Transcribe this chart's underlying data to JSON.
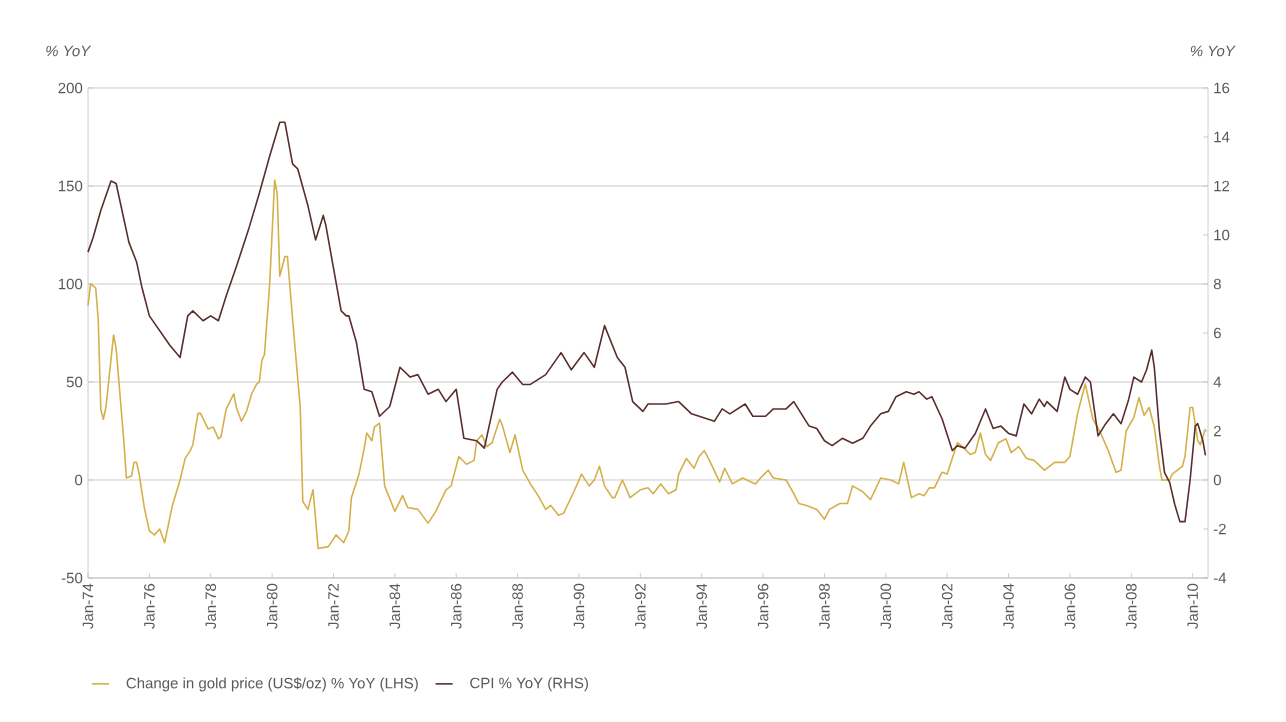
{
  "chart_data": {
    "type": "line",
    "ylabel": "% YoY",
    "y2label": "% YoY",
    "xlim": [
      "1974-01",
      "2010-07"
    ],
    "xticks": [
      {
        "value": "1974-01",
        "label": "Jan-74"
      },
      {
        "value": "1976-01",
        "label": "Jan-76"
      },
      {
        "value": "1978-01",
        "label": "Jan-78"
      },
      {
        "value": "1980-01",
        "label": "Jan-80"
      },
      {
        "value": "1982-01",
        "label": "Jan-72"
      },
      {
        "value": "1984-01",
        "label": "Jan-84"
      },
      {
        "value": "1986-01",
        "label": "Jan-86"
      },
      {
        "value": "1988-01",
        "label": "Jan-88"
      },
      {
        "value": "1990-01",
        "label": "Jan-90"
      },
      {
        "value": "1992-01",
        "label": "Jan-92"
      },
      {
        "value": "1994-01",
        "label": "Jan-94"
      },
      {
        "value": "1996-01",
        "label": "Jan-96"
      },
      {
        "value": "1998-01",
        "label": "Jan-98"
      },
      {
        "value": "2000-01",
        "label": "Jan-00"
      },
      {
        "value": "2002-01",
        "label": "Jan-02"
      },
      {
        "value": "2004-01",
        "label": "Jan-04"
      },
      {
        "value": "2006-01",
        "label": "Jan-06"
      },
      {
        "value": "2008-01",
        "label": "Jan-08"
      },
      {
        "value": "2010-01",
        "label": "Jan-10"
      }
    ],
    "ylim": [
      -50,
      200
    ],
    "yticks": [
      -50,
      0,
      50,
      100,
      150,
      200
    ],
    "y2lim": [
      -4,
      16
    ],
    "y2ticks": [
      -4,
      -2,
      0,
      2,
      4,
      6,
      8,
      10,
      12,
      14,
      16
    ],
    "grid": "y",
    "legend": "bottom",
    "series": [
      {
        "name": "Change in gold price (US$/oz) % YoY (LHS)",
        "color": "#d4b04a",
        "x": [
          "1974-01",
          "1974-02",
          "1974-04",
          "1974-05",
          "1974-06",
          "1974-07",
          "1974-08",
          "1974-11",
          "1974-12",
          "1975-03",
          "1975-04",
          "1975-06",
          "1975-07",
          "1975-08",
          "1975-09",
          "1975-11",
          "1976-01",
          "1976-03",
          "1976-05",
          "1976-07",
          "1976-10",
          "1977-01",
          "1977-03",
          "1977-05",
          "1977-06",
          "1977-08",
          "1977-09",
          "1977-12",
          "1978-02",
          "1978-04",
          "1978-05",
          "1978-07",
          "1978-10",
          "1978-11",
          "1979-01",
          "1979-03",
          "1979-05",
          "1979-07",
          "1979-08",
          "1979-09",
          "1979-10",
          "1979-12",
          "1980-02",
          "1980-03",
          "1980-04",
          "1980-06",
          "1980-07",
          "1980-09",
          "1980-12",
          "1981-01",
          "1981-03",
          "1981-05",
          "1981-07",
          "1981-11",
          "1982-02",
          "1982-05",
          "1982-07",
          "1982-08",
          "1982-11",
          "1983-01",
          "1983-02",
          "1983-04",
          "1983-05",
          "1983-07",
          "1983-09",
          "1984-01",
          "1984-04",
          "1984-06",
          "1984-10",
          "1985-02",
          "1985-05",
          "1985-09",
          "1985-11",
          "1986-02",
          "1986-05",
          "1986-08",
          "1986-09",
          "1986-11",
          "1987-01",
          "1987-03",
          "1987-06",
          "1987-07",
          "1987-10",
          "1987-12",
          "1988-03",
          "1988-06",
          "1988-09",
          "1988-12",
          "1989-02",
          "1989-05",
          "1989-07",
          "1989-11",
          "1990-02",
          "1990-05",
          "1990-07",
          "1990-09",
          "1990-11",
          "1991-02",
          "1991-03",
          "1991-06",
          "1991-09",
          "1992-01",
          "1992-04",
          "1992-06",
          "1992-09",
          "1992-12",
          "1993-03",
          "1993-04",
          "1993-07",
          "1993-10",
          "1993-12",
          "1994-02",
          "1994-04",
          "1994-08",
          "1994-10",
          "1995-01",
          "1995-05",
          "1995-10",
          "1995-12",
          "1996-03",
          "1996-05",
          "1996-10",
          "1997-01",
          "1997-03",
          "1997-06",
          "1997-10",
          "1998-01",
          "1998-03",
          "1998-07",
          "1998-10",
          "1998-12",
          "1999-04",
          "1999-07",
          "1999-11",
          "2000-03",
          "2000-06",
          "2000-08",
          "2000-11",
          "2001-02",
          "2001-04",
          "2001-06",
          "2001-08",
          "2001-11",
          "2002-01",
          "2002-05",
          "2002-07",
          "2002-10",
          "2002-12",
          "2003-02",
          "2003-04",
          "2003-06",
          "2003-09",
          "2003-12",
          "2004-02",
          "2004-05",
          "2004-08",
          "2004-11",
          "2005-03",
          "2005-05",
          "2005-07",
          "2005-11",
          "2006-01",
          "2006-04",
          "2006-07",
          "2006-10",
          "2007-01",
          "2007-04",
          "2007-07",
          "2007-09",
          "2007-11",
          "2008-02",
          "2008-04",
          "2008-06",
          "2008-08",
          "2008-10",
          "2008-12",
          "2009-01",
          "2009-04",
          "2009-05",
          "2009-09",
          "2009-10",
          "2009-12",
          "2010-01",
          "2010-03",
          "2010-04",
          "2010-06"
        ],
        "values": [
          89,
          100,
          98,
          82,
          36,
          31,
          37,
          74,
          67,
          20,
          1,
          2,
          9,
          9,
          3,
          -14,
          -26,
          -28,
          -25,
          -32,
          -13,
          0,
          11,
          15,
          18,
          34,
          34,
          26,
          27,
          21,
          22,
          36,
          44,
          37,
          30,
          35,
          44,
          49,
          50,
          61,
          64,
          99,
          153,
          146,
          104,
          114,
          114,
          82,
          37,
          -11,
          -15,
          -5,
          -35,
          -34,
          -28,
          -32,
          -26,
          -9,
          3,
          16,
          24,
          20,
          27,
          29,
          -3,
          -16,
          -8,
          -14,
          -15,
          -22,
          -16,
          -5,
          -3,
          12,
          8,
          10,
          20,
          23,
          17,
          19,
          31,
          28,
          14,
          23,
          5,
          -2,
          -8,
          -15,
          -13,
          -18,
          -17,
          -6,
          3,
          -3,
          0,
          7,
          -3,
          -9,
          -9,
          0,
          -9,
          -5,
          -4,
          -7,
          -2,
          -7,
          -5,
          3,
          11,
          6,
          12,
          15,
          10,
          -1,
          6,
          -2,
          1,
          -2,
          1,
          5,
          1,
          0,
          -7,
          -12,
          -13,
          -15,
          -20,
          -15,
          -12,
          -12,
          -3,
          -6,
          -10,
          1,
          0,
          -2,
          9,
          -9,
          -7,
          -8,
          -4,
          -4,
          4,
          3,
          19,
          17,
          13,
          14,
          24,
          13,
          10,
          19,
          21,
          14,
          17,
          11,
          10,
          5,
          7,
          9,
          9,
          12,
          34,
          49,
          31,
          24,
          15,
          4,
          5,
          25,
          32,
          42,
          33,
          37,
          27,
          7,
          0,
          0,
          3,
          7,
          12,
          37,
          37,
          20,
          18,
          26
        ]
      },
      {
        "name": "CPI % YoY (RHS)",
        "color": "#5a2d2d",
        "axis": "y2",
        "x": [
          "1974-01",
          "1974-03",
          "1974-06",
          "1974-10",
          "1974-12",
          "1975-05",
          "1975-08",
          "1975-10",
          "1976-01",
          "1976-05",
          "1976-09",
          "1977-01",
          "1977-04",
          "1977-06",
          "1977-10",
          "1978-01",
          "1978-04",
          "1978-07",
          "1978-11",
          "1979-04",
          "1979-08",
          "1979-12",
          "1980-04",
          "1980-06",
          "1980-09",
          "1980-11",
          "1981-03",
          "1981-06",
          "1981-09",
          "1981-10",
          "1982-04",
          "1982-06",
          "1982-07",
          "1982-10",
          "1983-01",
          "1983-04",
          "1983-07",
          "1983-11",
          "1984-03",
          "1984-07",
          "1984-10",
          "1985-02",
          "1985-06",
          "1985-09",
          "1986-01",
          "1986-04",
          "1986-09",
          "1986-12",
          "1987-05",
          "1987-07",
          "1987-11",
          "1988-03",
          "1988-06",
          "1988-12",
          "1989-06",
          "1989-10",
          "1990-03",
          "1990-07",
          "1990-11",
          "1991-04",
          "1991-07",
          "1991-10",
          "1992-02",
          "1992-04",
          "1992-11",
          "1993-04",
          "1993-09",
          "1994-06",
          "1994-09",
          "1994-12",
          "1995-06",
          "1995-09",
          "1996-02",
          "1996-05",
          "1996-10",
          "1997-01",
          "1997-07",
          "1997-10",
          "1998-01",
          "1998-04",
          "1998-08",
          "1998-12",
          "1999-04",
          "1999-07",
          "1999-11",
          "2000-02",
          "2000-05",
          "2000-09",
          "2000-12",
          "2001-02",
          "2001-05",
          "2001-07",
          "2001-11",
          "2002-03",
          "2002-05",
          "2002-08",
          "2002-12",
          "2003-04",
          "2003-07",
          "2003-10",
          "2004-01",
          "2004-04",
          "2004-07",
          "2004-10",
          "2005-01",
          "2005-03",
          "2005-04",
          "2005-08",
          "2005-11",
          "2006-01",
          "2006-04",
          "2006-07",
          "2006-09",
          "2006-12",
          "2007-03",
          "2007-06",
          "2007-09",
          "2007-12",
          "2008-02",
          "2008-05",
          "2008-07",
          "2008-09",
          "2008-10",
          "2008-12",
          "2009-02",
          "2009-04",
          "2009-06",
          "2009-08",
          "2009-10",
          "2009-12",
          "2010-02",
          "2010-03",
          "2010-05",
          "2010-06"
        ],
        "values": [
          9.3,
          9.9,
          11.0,
          12.2,
          12.1,
          9.7,
          8.9,
          7.9,
          6.7,
          6.1,
          5.5,
          5.0,
          6.7,
          6.9,
          6.5,
          6.7,
          6.5,
          7.5,
          8.7,
          10.3,
          11.7,
          13.2,
          14.6,
          14.6,
          12.9,
          12.7,
          11.2,
          9.8,
          10.8,
          10.4,
          6.9,
          6.7,
          6.7,
          5.6,
          3.7,
          3.6,
          2.6,
          3.0,
          4.6,
          4.2,
          4.3,
          3.5,
          3.7,
          3.2,
          3.7,
          1.7,
          1.6,
          1.3,
          3.7,
          4.0,
          4.4,
          3.9,
          3.9,
          4.3,
          5.2,
          4.5,
          5.2,
          4.6,
          6.3,
          5.0,
          4.6,
          3.2,
          2.8,
          3.1,
          3.1,
          3.2,
          2.7,
          2.4,
          2.9,
          2.7,
          3.1,
          2.6,
          2.6,
          2.9,
          2.9,
          3.2,
          2.2,
          2.1,
          1.6,
          1.4,
          1.7,
          1.5,
          1.7,
          2.2,
          2.7,
          2.8,
          3.4,
          3.6,
          3.5,
          3.6,
          3.3,
          3.4,
          2.5,
          1.2,
          1.4,
          1.3,
          1.9,
          2.9,
          2.1,
          2.2,
          1.9,
          1.8,
          3.1,
          2.7,
          3.3,
          3.0,
          3.2,
          2.8,
          4.2,
          3.7,
          3.5,
          4.2,
          4.0,
          1.8,
          2.3,
          2.7,
          2.3,
          3.3,
          4.2,
          4.0,
          4.5,
          5.3,
          4.6,
          2.0,
          0.3,
          -0.1,
          -1.0,
          -1.7,
          -1.7,
          0.0,
          2.2,
          2.3,
          1.6,
          1.0
        ]
      }
    ]
  }
}
